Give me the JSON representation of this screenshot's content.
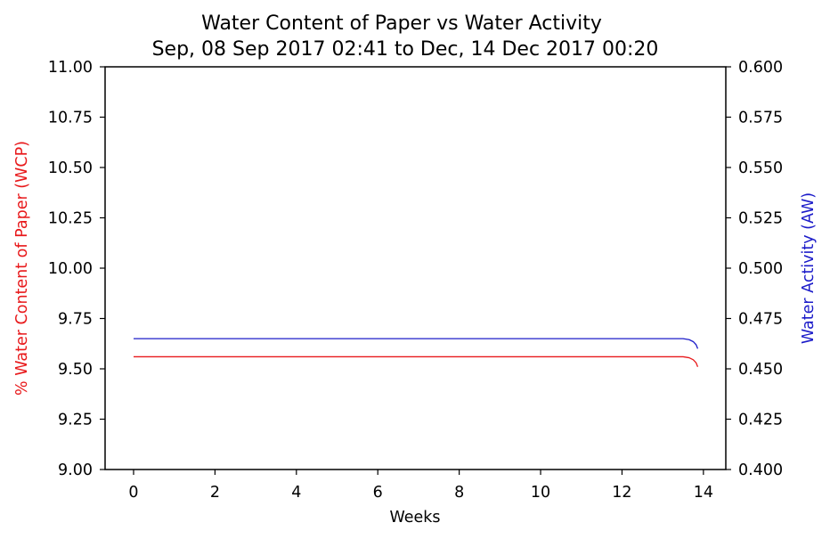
{
  "chart_data": {
    "type": "line",
    "title": "Water Content of Paper vs Water Activity",
    "subtitle": "Sep, 08 Sep 2017 02:41 to Dec, 14 Dec 2017 00:20",
    "xlabel": "Weeks",
    "ylabel_left": "% Water Content of Paper (WCP)",
    "ylabel_right": "Water Activity (AW)",
    "xlim": [
      -0.7,
      14.55
    ],
    "ylim_left": [
      9.0,
      11.0
    ],
    "ylim_right": [
      0.4,
      0.6
    ],
    "x_ticks": [
      "0",
      "2",
      "4",
      "6",
      "8",
      "10",
      "12",
      "14"
    ],
    "y_ticks_left": [
      "9.00",
      "9.25",
      "9.50",
      "9.75",
      "10.00",
      "10.25",
      "10.50",
      "10.75",
      "11.00"
    ],
    "y_ticks_right": [
      "0.400",
      "0.425",
      "0.450",
      "0.475",
      "0.500",
      "0.525",
      "0.550",
      "0.575",
      "0.600"
    ],
    "grid": false,
    "legend": "none",
    "series": [
      {
        "axis": "left",
        "color": "#e8191b",
        "x": [
          0,
          2,
          4,
          6,
          8,
          10,
          12,
          13.5,
          13.65,
          13.75,
          13.82,
          13.86
        ],
        "y": [
          9.56,
          9.56,
          9.56,
          9.56,
          9.56,
          9.56,
          9.56,
          9.56,
          9.555,
          9.545,
          9.53,
          9.51
        ]
      },
      {
        "axis": "right",
        "color": "#1c1cc9",
        "x": [
          0,
          2,
          4,
          6,
          8,
          10,
          12,
          13.5,
          13.65,
          13.75,
          13.82,
          13.86
        ],
        "y": [
          0.465,
          0.465,
          0.465,
          0.465,
          0.465,
          0.465,
          0.465,
          0.465,
          0.4645,
          0.4635,
          0.462,
          0.46
        ]
      }
    ]
  },
  "colors": {
    "left_axis_label": "#e8191b",
    "right_axis_label": "#1c1cc9",
    "axes": "#000000"
  }
}
